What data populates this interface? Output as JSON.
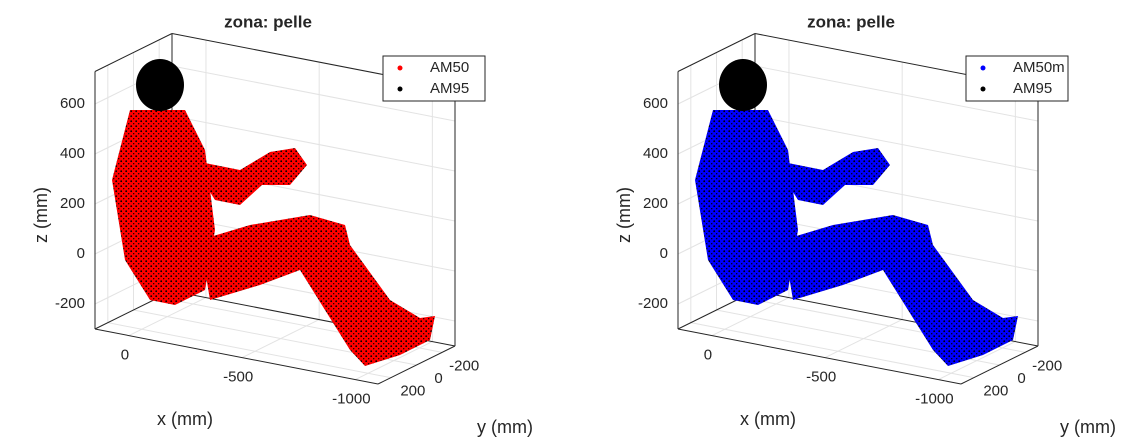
{
  "chart_data": [
    {
      "type": "scatter3d",
      "title": "zona: pelle",
      "xlabel": "x (mm)",
      "ylabel": "y (mm)",
      "zlabel": "z (mm)",
      "xlim": [
        150,
        -1100
      ],
      "ylim": [
        300,
        -300
      ],
      "zlim": [
        -300,
        730
      ],
      "xticks": [
        0,
        -500,
        -1000
      ],
      "yticks": [
        200,
        0,
        -200
      ],
      "zticks": [
        600,
        400,
        200,
        0,
        -200
      ],
      "grid": true,
      "legend": "upper right",
      "series": [
        {
          "name": "AM50",
          "color": "#ff0000"
        },
        {
          "name": "AM95",
          "color": "#000000"
        }
      ]
    },
    {
      "type": "scatter3d",
      "title": "zona: pelle",
      "xlabel": "x (mm)",
      "ylabel": "y (mm)",
      "zlabel": "z (mm)",
      "xlim": [
        150,
        -1100
      ],
      "ylim": [
        300,
        -300
      ],
      "zlim": [
        -300,
        730
      ],
      "xticks": [
        0,
        -500,
        -1000
      ],
      "yticks": [
        200,
        0,
        -200
      ],
      "zticks": [
        600,
        400,
        200,
        0,
        -200
      ],
      "grid": true,
      "legend": "upper right",
      "series": [
        {
          "name": "AM50m",
          "color": "#0000ff"
        },
        {
          "name": "AM95",
          "color": "#000000"
        }
      ]
    }
  ]
}
